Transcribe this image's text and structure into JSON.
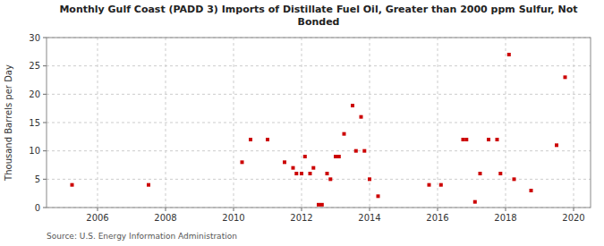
{
  "chart_data": {
    "type": "scatter",
    "title": "Monthly Gulf Coast (PADD 3) Imports of Distillate Fuel Oil, Greater than 2000 ppm Sulfur, Not\nBonded",
    "ylabel": "Thousand Barrels per Day",
    "source": "Source: U.S. Energy Information Administration",
    "color": "#cc0000",
    "marker": "square",
    "grid": true,
    "xlim": [
      2004.5,
      2020.5
    ],
    "ylim": [
      0,
      30
    ],
    "xticks": [
      2006,
      2008,
      2010,
      2012,
      2014,
      2016,
      2018,
      2020
    ],
    "yticks": [
      0,
      5,
      10,
      15,
      20,
      25,
      30
    ],
    "x": [
      2005.25,
      2007.5,
      2010.25,
      2010.5,
      2011.0,
      2011.5,
      2011.75,
      2011.85,
      2012.0,
      2012.1,
      2012.25,
      2012.35,
      2012.5,
      2012.6,
      2012.75,
      2012.85,
      2013.0,
      2013.1,
      2013.25,
      2013.5,
      2013.6,
      2013.75,
      2013.85,
      2014.0,
      2014.25,
      2015.75,
      2016.1,
      2016.75,
      2016.85,
      2017.1,
      2017.25,
      2017.5,
      2017.75,
      2017.85,
      2018.1,
      2018.25,
      2018.75,
      2019.5,
      2019.75
    ],
    "values": [
      4,
      4,
      8,
      12,
      12,
      8,
      7,
      6,
      6,
      9,
      6,
      7,
      0.5,
      0.5,
      6,
      5,
      9,
      9,
      13,
      18,
      10,
      16,
      10,
      5,
      2,
      4,
      4,
      12,
      12,
      1,
      6,
      12,
      12,
      6,
      27,
      5,
      3,
      11,
      23
    ]
  }
}
